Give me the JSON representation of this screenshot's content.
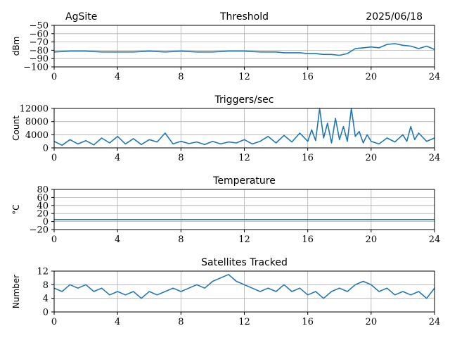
{
  "header": {
    "site": "AgSite",
    "date": "2025/06/18"
  },
  "colors": {
    "line": "#1f77b4",
    "grid": "#b0b0b0"
  },
  "chart_data": [
    {
      "type": "line",
      "title": "Threshold",
      "ylabel": "dBm",
      "xlim": [
        0,
        24
      ],
      "ylim": [
        -100,
        -50
      ],
      "xticks": [
        0,
        4,
        8,
        12,
        16,
        20,
        24
      ],
      "yticks": [
        -100,
        -90,
        -80,
        -70,
        -60,
        -50
      ],
      "ytick_labels": [
        "−100",
        "−90",
        "−80",
        "−70",
        "−60",
        "−50"
      ],
      "grid": true,
      "series": [
        {
          "x": [
            0,
            1,
            2,
            3,
            4,
            5,
            6,
            7,
            8,
            9,
            10,
            11,
            12,
            13,
            14,
            14.5,
            15,
            15.5,
            16,
            16.5,
            17,
            17.5,
            18,
            18.5,
            19,
            19.5,
            20,
            20.5,
            21,
            21.5,
            22,
            22.5,
            23,
            23.5,
            24
          ],
          "y": [
            -82,
            -81,
            -81,
            -82,
            -82,
            -82,
            -81,
            -82,
            -81,
            -82,
            -82,
            -81,
            -81,
            -82,
            -82,
            -83,
            -83,
            -83,
            -84,
            -84,
            -85,
            -85,
            -86,
            -84,
            -78,
            -77,
            -76,
            -77,
            -73,
            -72,
            -74,
            -75,
            -78,
            -75,
            -79
          ]
        }
      ]
    },
    {
      "type": "line",
      "title": "Triggers/sec",
      "ylabel": "Count",
      "xlim": [
        0,
        24
      ],
      "ylim": [
        0,
        12000
      ],
      "xticks": [
        0,
        4,
        8,
        12,
        16,
        20,
        24
      ],
      "yticks": [
        0,
        4000,
        8000,
        12000
      ],
      "grid": true,
      "series": [
        {
          "x": [
            0,
            0.5,
            1,
            1.5,
            2,
            2.5,
            3,
            3.5,
            4,
            4.5,
            5,
            5.5,
            6,
            6.5,
            7,
            7.5,
            8,
            8.5,
            9,
            9.5,
            10,
            10.5,
            11,
            11.5,
            12,
            12.5,
            13,
            13.5,
            14,
            14.5,
            15,
            15.5,
            16,
            16.25,
            16.5,
            16.75,
            17,
            17.25,
            17.5,
            17.75,
            18,
            18.25,
            18.5,
            18.75,
            19,
            19.25,
            19.5,
            19.75,
            20,
            20.5,
            21,
            21.5,
            22,
            22.25,
            22.5,
            22.75,
            23,
            23.5,
            24
          ],
          "y": [
            2000,
            800,
            2500,
            1200,
            2200,
            900,
            3000,
            1500,
            3500,
            1200,
            2800,
            1000,
            2500,
            1800,
            4500,
            1200,
            2000,
            1300,
            1800,
            1000,
            2000,
            1200,
            1800,
            1500,
            2500,
            1200,
            2000,
            3500,
            1500,
            3800,
            1800,
            4500,
            2000,
            5500,
            2200,
            12000,
            3000,
            7500,
            1500,
            9000,
            2500,
            6500,
            2000,
            12000,
            3500,
            5000,
            1500,
            4000,
            2000,
            1200,
            3000,
            1800,
            4000,
            2000,
            6500,
            2500,
            4500,
            2000,
            3000
          ]
        }
      ]
    },
    {
      "type": "line",
      "title": "Temperature",
      "ylabel": "°C",
      "xlim": [
        0,
        24
      ],
      "ylim": [
        -20,
        80
      ],
      "xticks": [
        0,
        4,
        8,
        12,
        16,
        20,
        24
      ],
      "yticks": [
        -20,
        0,
        20,
        40,
        60,
        80
      ],
      "ytick_labels": [
        "−20",
        "0",
        "20",
        "40",
        "60",
        "80"
      ],
      "grid": true,
      "series": [
        {
          "x": [
            0,
            24
          ],
          "y": [
            5,
            5
          ]
        }
      ]
    },
    {
      "type": "line",
      "title": "Satellites Tracked",
      "ylabel": "Number",
      "xlim": [
        0,
        24
      ],
      "ylim": [
        0,
        12
      ],
      "xticks": [
        0,
        4,
        8,
        12,
        16,
        20,
        24
      ],
      "yticks": [
        0,
        4,
        8,
        12
      ],
      "grid": true,
      "series": [
        {
          "x": [
            0,
            0.5,
            1,
            1.5,
            2,
            2.5,
            3,
            3.5,
            4,
            4.5,
            5,
            5.5,
            6,
            6.5,
            7,
            7.5,
            8,
            8.5,
            9,
            9.5,
            10,
            10.5,
            11,
            11.5,
            12,
            12.5,
            13,
            13.5,
            14,
            14.5,
            15,
            15.5,
            16,
            16.5,
            17,
            17.5,
            18,
            18.5,
            19,
            19.5,
            20,
            20.5,
            21,
            21.5,
            22,
            22.5,
            23,
            23.5,
            24
          ],
          "y": [
            7,
            6,
            8,
            7,
            8,
            6,
            7,
            5,
            6,
            5,
            6,
            4,
            6,
            5,
            6,
            7,
            6,
            7,
            8,
            7,
            9,
            10,
            11,
            9,
            8,
            7,
            6,
            7,
            6,
            8,
            6,
            7,
            5,
            6,
            4,
            6,
            7,
            6,
            8,
            9,
            8,
            6,
            7,
            5,
            6,
            5,
            6,
            4,
            7
          ]
        }
      ]
    }
  ]
}
